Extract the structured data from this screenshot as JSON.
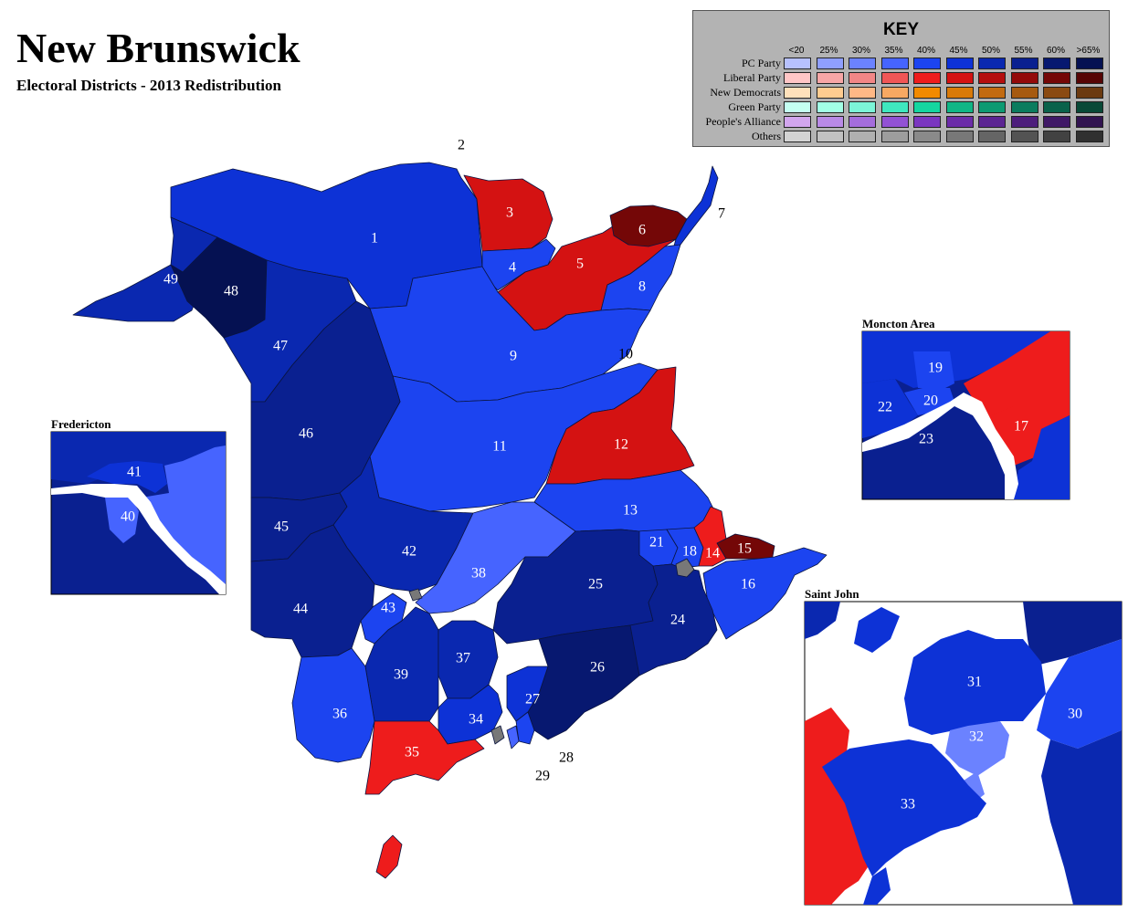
{
  "header": {
    "title": "New Brunswick",
    "subtitle": "Electoral Districts - 2013 Redistribution"
  },
  "key": {
    "title": "KEY",
    "thresholds": [
      "<20",
      "25%",
      "30%",
      "35%",
      "40%",
      "45%",
      "50%",
      "55%",
      "60%",
      ">65%"
    ],
    "parties": [
      {
        "name": "PC Party",
        "colors": [
          "#b7c1ff",
          "#8f9fff",
          "#6b82ff",
          "#4664ff",
          "#1c44f0",
          "#0d32d6",
          "#0a28b0",
          "#0a2090",
          "#071870",
          "#051152"
        ]
      },
      {
        "name": "Liberal Party",
        "colors": [
          "#ffc6c6",
          "#f7a6a6",
          "#f28686",
          "#f05656",
          "#ee1c1c",
          "#d41212",
          "#b50e0e",
          "#930a0a",
          "#740707",
          "#560505"
        ]
      },
      {
        "name": "New Democrats",
        "colors": [
          "#ffe1bb",
          "#ffcc90",
          "#ffb886",
          "#f7a862",
          "#f28a00",
          "#d97a08",
          "#c26a10",
          "#a65a10",
          "#8a4a12",
          "#6b3a10"
        ]
      },
      {
        "name": "Green Party",
        "colors": [
          "#c4fff1",
          "#a2ffe6",
          "#7cf5d8",
          "#3fe8bf",
          "#15d6a0",
          "#10b686",
          "#0d9a72",
          "#0b7c5e",
          "#0a624b",
          "#084937"
        ]
      },
      {
        "name": "People's Alliance",
        "colors": [
          "#d2a6ee",
          "#b98ae6",
          "#a46ddc",
          "#9252d4",
          "#7a36c0",
          "#6b2ca8",
          "#5b2492",
          "#4d1e7c",
          "#3f1866",
          "#311350"
        ]
      },
      {
        "name": "Others",
        "colors": [
          "#d3d3d3",
          "#c1c1c1",
          "#b0b0b0",
          "#9d9d9d",
          "#8a8a8a",
          "#787878",
          "#656565",
          "#535353",
          "#424242",
          "#303030"
        ]
      }
    ]
  },
  "insets": {
    "fredericton": "Fredericton",
    "moncton": "Moncton Area",
    "saint_john": "Saint John"
  },
  "districts": {
    "d1": "1",
    "d2": "2",
    "d3": "3",
    "d4": "4",
    "d5": "5",
    "d6": "6",
    "d7": "7",
    "d8": "8",
    "d9": "9",
    "d10": "10",
    "d11": "11",
    "d12": "12",
    "d13": "13",
    "d14": "14",
    "d15": "15",
    "d16": "16",
    "d17": "17",
    "d18": "18",
    "d19": "19",
    "d20": "20",
    "d21": "21",
    "d22": "22",
    "d23": "23",
    "d24": "24",
    "d25": "25",
    "d26": "26",
    "d27": "27",
    "d28": "28",
    "d29": "29",
    "d30": "30",
    "d31": "31",
    "d32": "32",
    "d33": "33",
    "d34": "34",
    "d35": "35",
    "d36": "36",
    "d37": "37",
    "d38": "38",
    "d39": "39",
    "d40": "40",
    "d41": "41",
    "d42": "42",
    "d43": "43",
    "d44": "44",
    "d45": "45",
    "d46": "46",
    "d47": "47",
    "d48": "48",
    "d49": "49"
  }
}
